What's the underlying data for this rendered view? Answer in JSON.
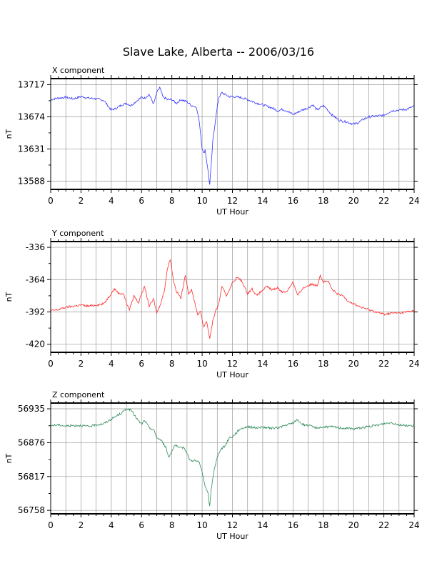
{
  "figure": {
    "title": "Slave Lake, Alberta -- 2006/03/16"
  },
  "colors": {
    "background": "#ffffff",
    "axes": "#000000",
    "grid": "#999999",
    "x_series": "#3333ff",
    "y_series": "#ff2a2a",
    "z_series": "#2e8b57"
  },
  "chart_data": [
    {
      "type": "line",
      "title": "X component",
      "xlabel": "UT Hour",
      "ylabel": "nT",
      "xlim": [
        0,
        24
      ],
      "ylim": [
        13577,
        13725
      ],
      "xticks": [
        "0",
        "2",
        "4",
        "6",
        "8",
        "10",
        "12",
        "14",
        "16",
        "18",
        "20",
        "22",
        "24"
      ],
      "yticks": [
        "13717",
        "13674",
        "13631",
        "13588"
      ],
      "ytick_values": [
        13717,
        13674,
        13631,
        13588
      ],
      "grid": true,
      "series": [
        {
          "color": "#3333ff",
          "x": [
            0,
            0.5,
            1,
            1.5,
            2,
            2.5,
            3,
            3.5,
            4,
            4.3,
            4.7,
            5,
            5.3,
            5.6,
            6,
            6.2,
            6.5,
            6.8,
            7,
            7.2,
            7.4,
            7.7,
            8,
            8.3,
            8.6,
            9,
            9.3,
            9.6,
            9.8,
            10,
            10.1,
            10.2,
            10.4,
            10.5,
            10.6,
            10.7,
            10.9,
            11.1,
            11.3,
            11.5,
            11.8,
            12,
            12.5,
            13,
            13.5,
            14,
            14.3,
            14.6,
            15,
            15.3,
            15.6,
            16,
            16.3,
            16.6,
            17,
            17.3,
            17.6,
            18,
            18.3,
            18.6,
            19,
            19.3,
            19.6,
            20,
            20.3,
            20.6,
            21,
            21.5,
            22,
            22.5,
            23,
            23.5,
            24
          ],
          "values": [
            13697,
            13699,
            13700,
            13698,
            13701,
            13699,
            13698,
            13696,
            13683,
            13685,
            13690,
            13692,
            13689,
            13694,
            13700,
            13699,
            13704,
            13691,
            13706,
            13713,
            13701,
            13697,
            13697,
            13692,
            13697,
            13694,
            13689,
            13688,
            13670,
            13632,
            13625,
            13630,
            13600,
            13583,
            13610,
            13640,
            13673,
            13700,
            13706,
            13704,
            13701,
            13701,
            13700,
            13697,
            13693,
            13690,
            13688,
            13686,
            13682,
            13684,
            13682,
            13677,
            13680,
            13683,
            13686,
            13690,
            13683,
            13689,
            13683,
            13676,
            13670,
            13668,
            13667,
            13664,
            13666,
            13670,
            13674,
            13675,
            13676,
            13682,
            13683,
            13684,
            13688
          ]
        }
      ]
    },
    {
      "type": "line",
      "title": "Y component",
      "xlabel": "UT Hour",
      "ylabel": "nT",
      "xlim": [
        0,
        24
      ],
      "ylim": [
        -427,
        -331
      ],
      "xticks": [
        "0",
        "2",
        "4",
        "6",
        "8",
        "10",
        "12",
        "14",
        "16",
        "18",
        "20",
        "22",
        "24"
      ],
      "yticks": [
        "-336",
        "-364",
        "-392",
        "-420"
      ],
      "ytick_values": [
        -336,
        -364,
        -392,
        -420
      ],
      "grid": true,
      "series": [
        {
          "color": "#ff2a2a",
          "x": [
            0,
            0.5,
            1,
            1.5,
            2,
            2.5,
            3,
            3.5,
            4,
            4.2,
            4.5,
            4.8,
            5,
            5.2,
            5.5,
            5.8,
            6,
            6.2,
            6.5,
            6.8,
            7,
            7.3,
            7.5,
            7.7,
            7.9,
            8.1,
            8.3,
            8.6,
            8.9,
            9.1,
            9.3,
            9.5,
            9.7,
            9.9,
            10.1,
            10.3,
            10.5,
            10.7,
            10.9,
            11.1,
            11.3,
            11.6,
            12,
            12.3,
            12.6,
            13,
            13.3,
            13.6,
            14,
            14.3,
            14.6,
            15,
            15.3,
            15.6,
            16,
            16.3,
            16.6,
            17,
            17.3,
            17.6,
            17.8,
            18,
            18.3,
            18.6,
            19,
            19.3,
            19.6,
            20,
            20.5,
            21,
            21.5,
            22,
            22.5,
            23,
            23.5,
            24
          ],
          "values": [
            -391,
            -390,
            -388,
            -387,
            -386,
            -387,
            -386,
            -385,
            -376,
            -372,
            -376,
            -376,
            -384,
            -390,
            -378,
            -384,
            -376,
            -370,
            -387,
            -381,
            -393,
            -383,
            -374,
            -355,
            -346,
            -364,
            -374,
            -380,
            -360,
            -376,
            -373,
            -383,
            -394,
            -392,
            -405,
            -400,
            -415,
            -400,
            -391,
            -385,
            -370,
            -378,
            -367,
            -362,
            -365,
            -376,
            -372,
            -378,
            -373,
            -370,
            -373,
            -371,
            -375,
            -374,
            -366,
            -378,
            -372,
            -369,
            -368,
            -369,
            -360,
            -366,
            -365,
            -373,
            -377,
            -378,
            -382,
            -385,
            -388,
            -390,
            -392,
            -394,
            -393,
            -393,
            -392,
            -391
          ]
        }
      ]
    },
    {
      "type": "line",
      "title": "Z component",
      "xlabel": "UT Hour",
      "ylabel": "nT",
      "xlim": [
        0,
        24
      ],
      "ylim": [
        56752,
        56945
      ],
      "xticks": [
        "0",
        "2",
        "4",
        "6",
        "8",
        "10",
        "12",
        "14",
        "16",
        "18",
        "20",
        "22",
        "24"
      ],
      "yticks": [
        "56935",
        "56876",
        "56817",
        "56758"
      ],
      "ytick_values": [
        56935,
        56876,
        56817,
        56758
      ],
      "grid": true,
      "series": [
        {
          "color": "#2e8b57",
          "x": [
            0,
            0.5,
            1,
            1.5,
            2,
            2.5,
            3,
            3.5,
            4,
            4.5,
            4.8,
            5,
            5.3,
            5.5,
            5.8,
            6,
            6.2,
            6.5,
            6.8,
            7,
            7.3,
            7.6,
            7.8,
            8,
            8.2,
            8.5,
            8.8,
            9,
            9.2,
            9.5,
            9.8,
            10,
            10.2,
            10.4,
            10.5,
            10.6,
            10.8,
            11,
            11.2,
            11.5,
            11.8,
            12,
            12.5,
            13,
            13.5,
            14,
            14.5,
            15,
            15.5,
            16,
            16.3,
            16.6,
            17,
            17.5,
            18,
            18.5,
            19,
            19.5,
            20,
            20.5,
            21,
            21.5,
            22,
            22.5,
            23,
            23.5,
            24
          ],
          "values": [
            56906,
            56907,
            56905,
            56906,
            56906,
            56904,
            56907,
            56909,
            56917,
            56925,
            56930,
            56935,
            56933,
            56925,
            56914,
            56908,
            56915,
            56902,
            56898,
            56885,
            56880,
            56868,
            56850,
            56862,
            56872,
            56866,
            56868,
            56858,
            56845,
            56845,
            56842,
            56825,
            56800,
            56786,
            56764,
            56795,
            56830,
            56850,
            56864,
            56870,
            56885,
            56886,
            56900,
            56904,
            56902,
            56903,
            56901,
            56902,
            56906,
            56910,
            56916,
            56908,
            56906,
            56902,
            56903,
            56904,
            56902,
            56901,
            56900,
            56902,
            56904,
            56906,
            56909,
            56911,
            56907,
            56906,
            56905
          ]
        }
      ]
    }
  ]
}
